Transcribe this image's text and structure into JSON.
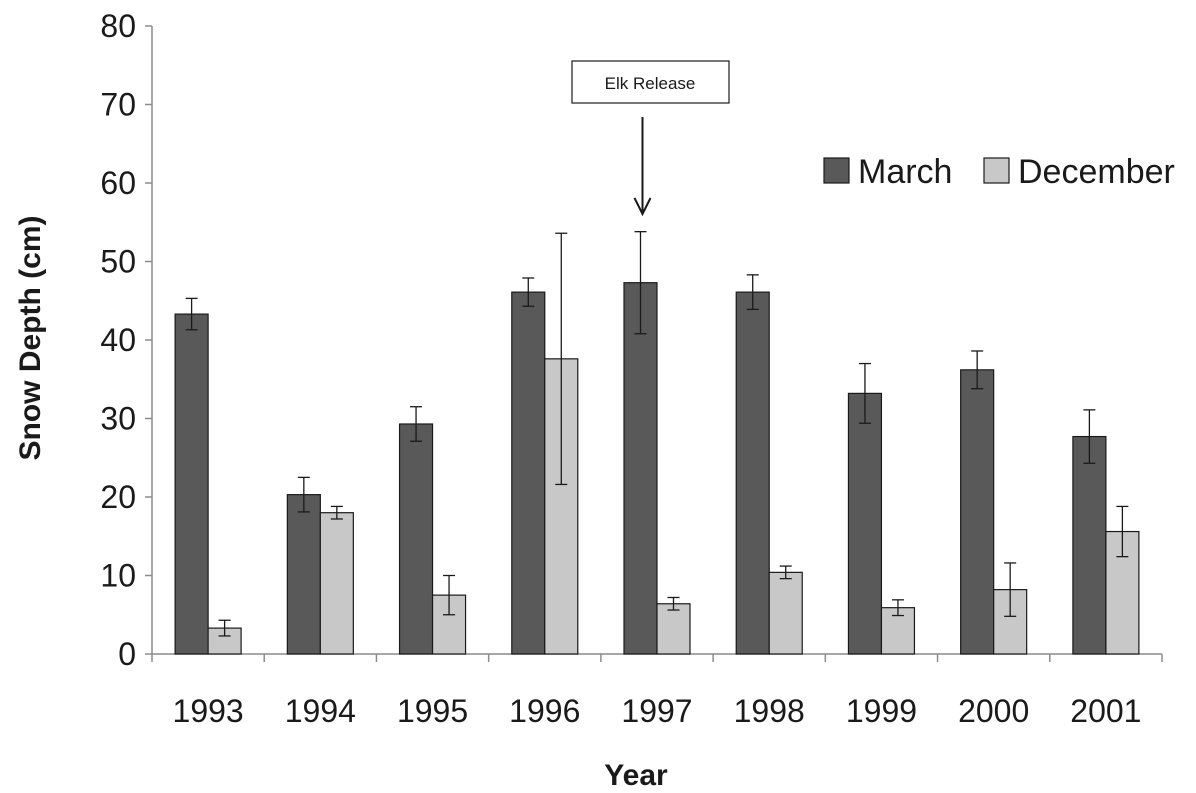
{
  "chart_data": {
    "type": "bar",
    "title": "",
    "xlabel": "Year",
    "ylabel": "Snow Depth (cm)",
    "ylim": [
      0,
      80
    ],
    "yticks": [
      0,
      10,
      20,
      30,
      40,
      50,
      60,
      70,
      80
    ],
    "grid": false,
    "legend_position": "top-right",
    "categories": [
      "1993",
      "1994",
      "1995",
      "1996",
      "1997",
      "1998",
      "1999",
      "2000",
      "2001"
    ],
    "series": [
      {
        "name": "March",
        "color": "#595959",
        "values": [
          43.3,
          20.3,
          29.3,
          46.1,
          47.3,
          46.1,
          33.2,
          36.2,
          27.7
        ],
        "errors": [
          2.0,
          2.2,
          2.2,
          1.8,
          6.5,
          2.2,
          3.8,
          2.4,
          3.4
        ]
      },
      {
        "name": "December",
        "color": "#c8c8c8",
        "values": [
          3.3,
          18.0,
          7.5,
          37.6,
          6.4,
          10.4,
          5.9,
          8.2,
          15.6
        ],
        "errors": [
          1.0,
          0.8,
          2.5,
          16.0,
          0.8,
          0.8,
          1.0,
          3.4,
          3.2
        ]
      }
    ],
    "annotations": [
      {
        "text": "Elk Release",
        "category": "1997"
      }
    ]
  }
}
